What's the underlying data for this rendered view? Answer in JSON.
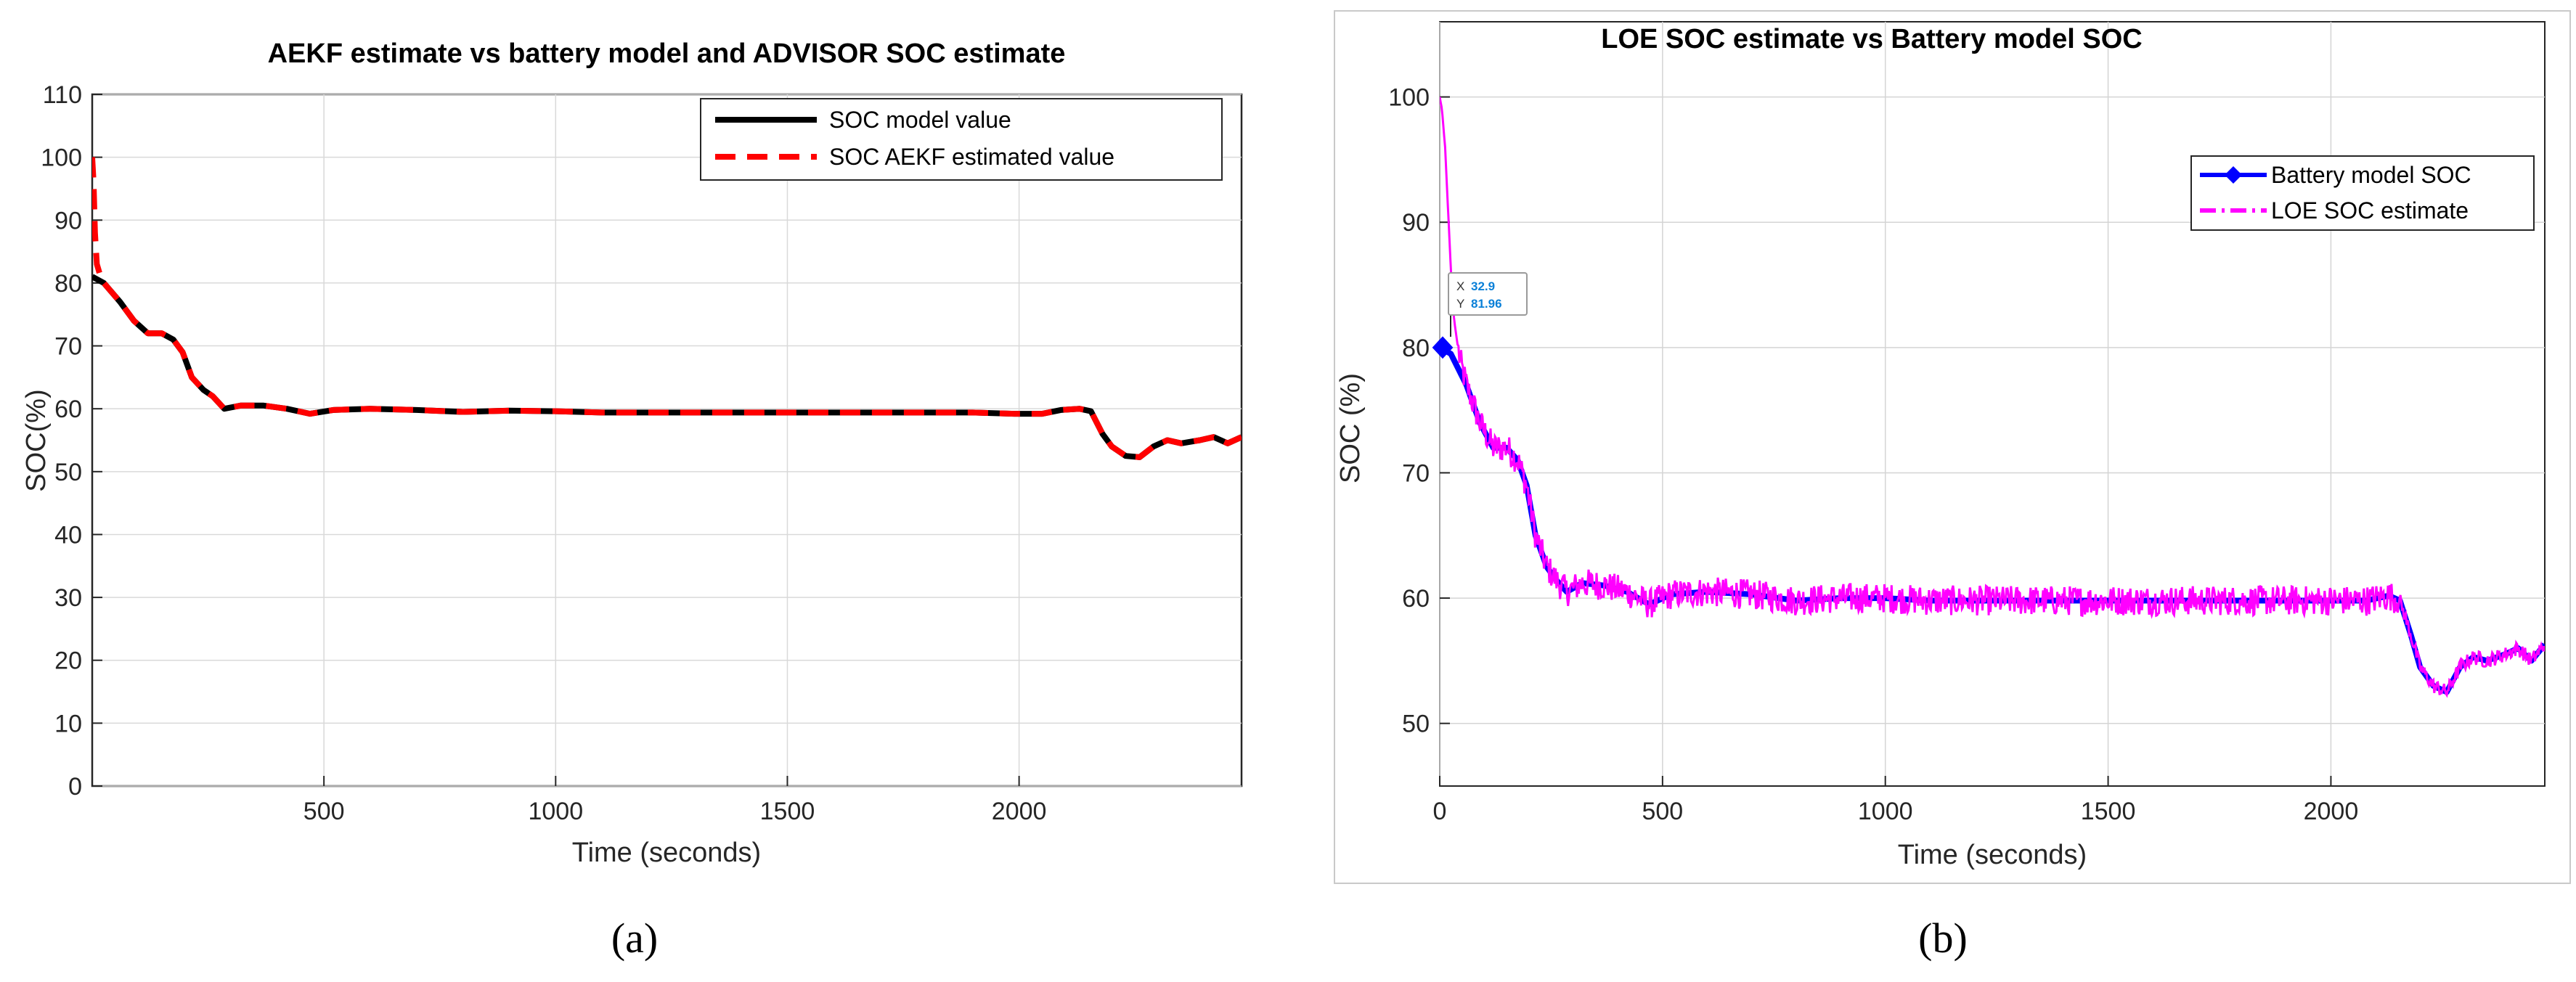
{
  "chart_data": [
    {
      "id": "a",
      "type": "line",
      "title": "AEKF estimate vs battery model and ADVISOR SOC estimate",
      "xlabel": "Time (seconds)",
      "ylabel": "SOC(%)",
      "xlim": [
        0,
        2480
      ],
      "ylim": [
        0,
        110
      ],
      "xticks": [
        500,
        1000,
        1500,
        2000
      ],
      "yticks": [
        0,
        10,
        20,
        30,
        40,
        50,
        60,
        70,
        80,
        90,
        100,
        110
      ],
      "grid": true,
      "legend_position": "top-right",
      "caption": "(a)",
      "series": [
        {
          "name": "SOC model value",
          "color": "#000000",
          "style": "solid",
          "points": [
            [
              0,
              81
            ],
            [
              25,
              80
            ],
            [
              60,
              77
            ],
            [
              90,
              74
            ],
            [
              120,
              72
            ],
            [
              150,
              72
            ],
            [
              175,
              71
            ],
            [
              195,
              69
            ],
            [
              215,
              65
            ],
            [
              240,
              63
            ],
            [
              260,
              62
            ],
            [
              285,
              60
            ],
            [
              320,
              60.5
            ],
            [
              370,
              60.5
            ],
            [
              420,
              60
            ],
            [
              470,
              59.2
            ],
            [
              520,
              59.8
            ],
            [
              600,
              60
            ],
            [
              700,
              59.8
            ],
            [
              800,
              59.5
            ],
            [
              900,
              59.7
            ],
            [
              1000,
              59.6
            ],
            [
              1100,
              59.4
            ],
            [
              1200,
              59.4
            ],
            [
              1300,
              59.4
            ],
            [
              1400,
              59.4
            ],
            [
              1500,
              59.4
            ],
            [
              1600,
              59.4
            ],
            [
              1700,
              59.4
            ],
            [
              1800,
              59.4
            ],
            [
              1900,
              59.4
            ],
            [
              1990,
              59.2
            ],
            [
              2050,
              59.2
            ],
            [
              2090,
              59.8
            ],
            [
              2130,
              60
            ],
            [
              2155,
              59.6
            ],
            [
              2180,
              56
            ],
            [
              2200,
              54
            ],
            [
              2230,
              52.5
            ],
            [
              2260,
              52.3
            ],
            [
              2290,
              54
            ],
            [
              2320,
              55
            ],
            [
              2350,
              54.5
            ],
            [
              2390,
              55
            ],
            [
              2420,
              55.5
            ],
            [
              2450,
              54.5
            ],
            [
              2480,
              55.5
            ]
          ]
        },
        {
          "name": "SOC AEKF estimated value",
          "color": "#ff0000",
          "style": "dashed",
          "points": [
            [
              0,
              100
            ],
            [
              3,
              96
            ],
            [
              6,
              88
            ],
            [
              10,
              83
            ],
            [
              18,
              81
            ],
            [
              25,
              80
            ],
            [
              60,
              77
            ],
            [
              90,
              74
            ],
            [
              120,
              72
            ],
            [
              150,
              72
            ],
            [
              175,
              71
            ],
            [
              195,
              69
            ],
            [
              215,
              65
            ],
            [
              240,
              63
            ],
            [
              260,
              62
            ],
            [
              285,
              60
            ],
            [
              320,
              60.5
            ],
            [
              370,
              60.5
            ],
            [
              420,
              60
            ],
            [
              470,
              59.2
            ],
            [
              520,
              59.8
            ],
            [
              600,
              60
            ],
            [
              700,
              59.8
            ],
            [
              800,
              59.5
            ],
            [
              900,
              59.7
            ],
            [
              1000,
              59.6
            ],
            [
              1100,
              59.4
            ],
            [
              1200,
              59.4
            ],
            [
              1300,
              59.4
            ],
            [
              1400,
              59.4
            ],
            [
              1500,
              59.4
            ],
            [
              1600,
              59.4
            ],
            [
              1700,
              59.4
            ],
            [
              1800,
              59.4
            ],
            [
              1900,
              59.4
            ],
            [
              1990,
              59.2
            ],
            [
              2050,
              59.2
            ],
            [
              2090,
              59.8
            ],
            [
              2130,
              60
            ],
            [
              2155,
              59.6
            ],
            [
              2180,
              56
            ],
            [
              2200,
              54
            ],
            [
              2230,
              52.5
            ],
            [
              2260,
              52.3
            ],
            [
              2290,
              54
            ],
            [
              2320,
              55
            ],
            [
              2350,
              54.5
            ],
            [
              2390,
              55
            ],
            [
              2420,
              55.5
            ],
            [
              2450,
              54.5
            ],
            [
              2480,
              55.5
            ]
          ]
        }
      ]
    },
    {
      "id": "b",
      "type": "line",
      "title": "LOE SOC estimate vs Battery model SOC",
      "xlabel": "Time (seconds)",
      "ylabel": "SOC (%)",
      "xlim": [
        0,
        2480
      ],
      "ylim": [
        45,
        106
      ],
      "xticks": [
        0,
        500,
        1000,
        1500,
        2000
      ],
      "yticks": [
        50,
        60,
        70,
        80,
        90,
        100
      ],
      "grid": true,
      "legend_position": "right",
      "caption": "(b)",
      "datatip": {
        "x_label": "X",
        "x_value": "32.9",
        "y_label": "Y",
        "y_value": "81.96",
        "at": [
          32.9,
          81.96
        ]
      },
      "series": [
        {
          "name": "Battery model SOC",
          "color": "#0000ff",
          "style": "solid-marker",
          "marker_at": [
            0,
            80
          ],
          "points": [
            [
              0,
              80
            ],
            [
              25,
              79.5
            ],
            [
              60,
              77
            ],
            [
              90,
              74
            ],
            [
              120,
              72
            ],
            [
              150,
              72
            ],
            [
              175,
              71
            ],
            [
              195,
              69
            ],
            [
              215,
              65
            ],
            [
              240,
              62.5
            ],
            [
              260,
              61.5
            ],
            [
              285,
              60.5
            ],
            [
              320,
              61.2
            ],
            [
              370,
              61
            ],
            [
              420,
              60.5
            ],
            [
              470,
              59.5
            ],
            [
              520,
              60.3
            ],
            [
              600,
              60.5
            ],
            [
              700,
              60.3
            ],
            [
              800,
              59.8
            ],
            [
              900,
              60
            ],
            [
              1000,
              60
            ],
            [
              1100,
              59.8
            ],
            [
              1200,
              59.8
            ],
            [
              1300,
              59.8
            ],
            [
              1400,
              59.8
            ],
            [
              1500,
              59.8
            ],
            [
              1600,
              59.8
            ],
            [
              1700,
              59.8
            ],
            [
              1800,
              59.8
            ],
            [
              1900,
              59.8
            ],
            [
              2000,
              59.8
            ],
            [
              2080,
              59.8
            ],
            [
              2130,
              60.2
            ],
            [
              2155,
              59.8
            ],
            [
              2180,
              57
            ],
            [
              2200,
              54.5
            ],
            [
              2230,
              53
            ],
            [
              2260,
              52.5
            ],
            [
              2290,
              54.5
            ],
            [
              2320,
              55.3
            ],
            [
              2350,
              55
            ],
            [
              2390,
              55.5
            ],
            [
              2420,
              56
            ],
            [
              2450,
              55
            ],
            [
              2480,
              56.3
            ]
          ]
        },
        {
          "name": "LOE  SOC estimate",
          "color": "#ff00ff",
          "style": "dash-dot",
          "noise_amplitude": 1.2,
          "points": [
            [
              0,
              100
            ],
            [
              5,
              99
            ],
            [
              12,
              96
            ],
            [
              20,
              90
            ],
            [
              28,
              84
            ],
            [
              33,
              82
            ],
            [
              45,
              79
            ],
            [
              60,
              77
            ],
            [
              90,
              74
            ],
            [
              120,
              72
            ],
            [
              150,
              72
            ],
            [
              175,
              71
            ],
            [
              195,
              69
            ],
            [
              215,
              65
            ],
            [
              240,
              62.5
            ],
            [
              260,
              61.5
            ],
            [
              285,
              60.5
            ],
            [
              320,
              61.2
            ],
            [
              370,
              61
            ],
            [
              420,
              60.5
            ],
            [
              470,
              59.5
            ],
            [
              520,
              60.3
            ],
            [
              600,
              60.5
            ],
            [
              700,
              60.3
            ],
            [
              800,
              59.8
            ],
            [
              900,
              60
            ],
            [
              1000,
              60
            ],
            [
              1100,
              59.8
            ],
            [
              1200,
              59.8
            ],
            [
              1300,
              59.8
            ],
            [
              1400,
              59.8
            ],
            [
              1500,
              59.8
            ],
            [
              1600,
              59.8
            ],
            [
              1700,
              59.8
            ],
            [
              1800,
              59.8
            ],
            [
              1900,
              59.8
            ],
            [
              2000,
              59.8
            ],
            [
              2080,
              59.8
            ],
            [
              2130,
              60.2
            ],
            [
              2155,
              59.8
            ],
            [
              2180,
              57
            ],
            [
              2200,
              54.5
            ],
            [
              2230,
              53
            ],
            [
              2260,
              52.5
            ],
            [
              2290,
              54.5
            ],
            [
              2320,
              55.3
            ],
            [
              2350,
              55
            ],
            [
              2390,
              55.5
            ],
            [
              2420,
              56
            ],
            [
              2450,
              55
            ],
            [
              2480,
              56.3
            ]
          ]
        }
      ]
    }
  ]
}
